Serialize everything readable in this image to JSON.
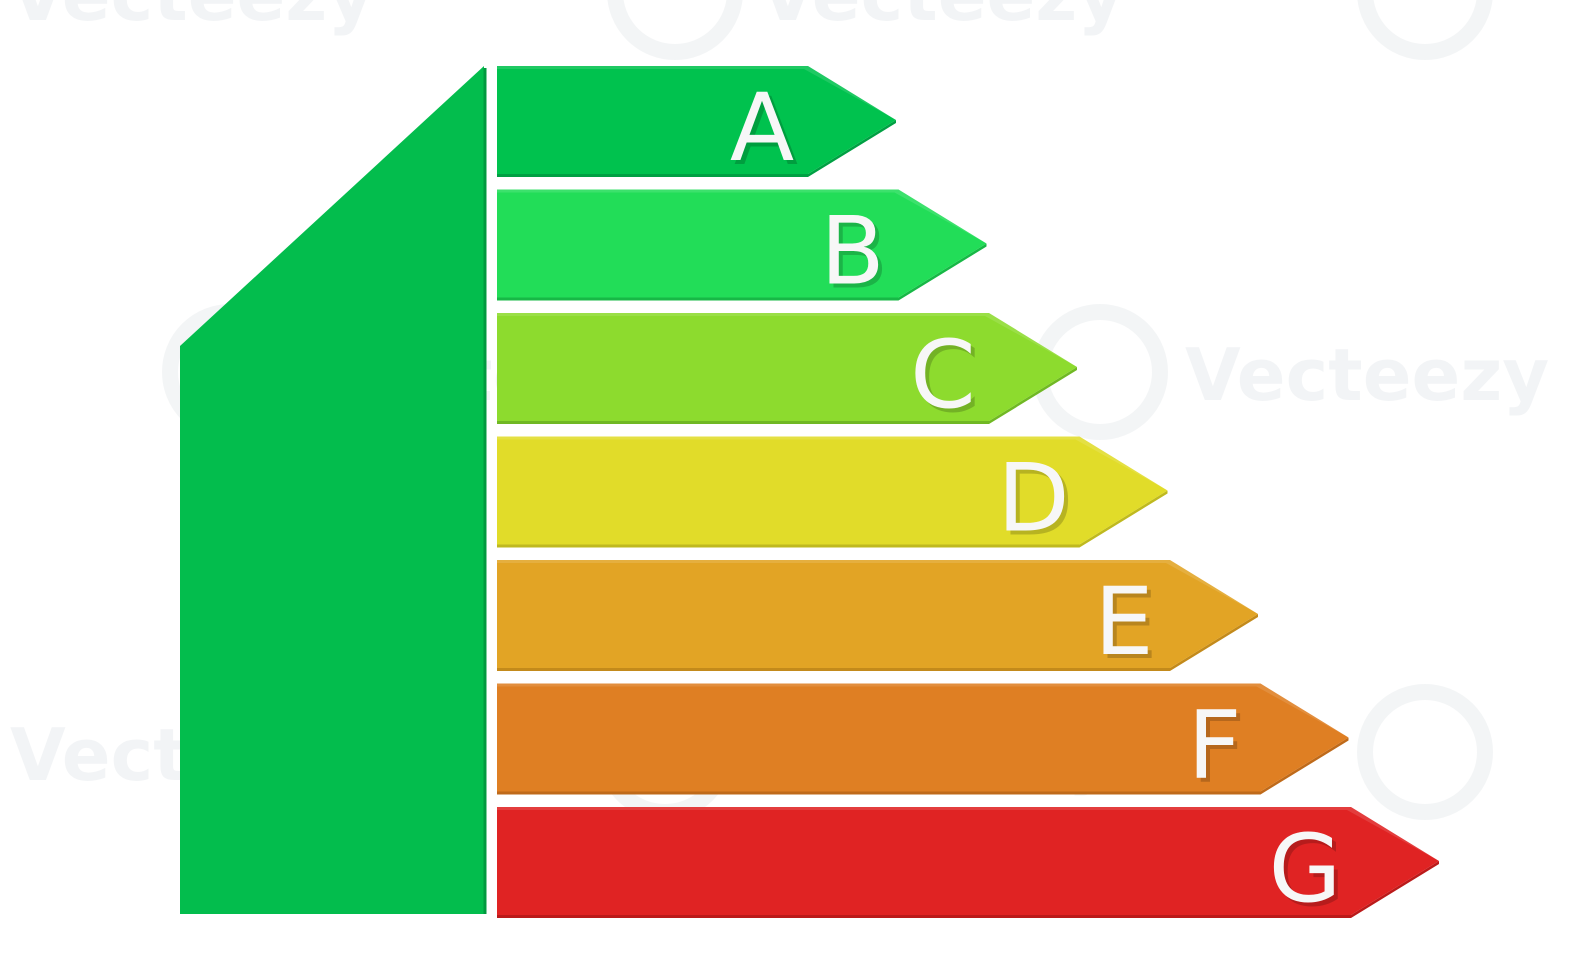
{
  "watermark": {
    "text": "Vecteezy",
    "color": "#e9ecef"
  },
  "house": {
    "color": "#03bd4d"
  },
  "bands": [
    {
      "letter": "A",
      "color": "#00c24e",
      "edge": "#00a043"
    },
    {
      "letter": "B",
      "color": "#22dd58",
      "edge": "#17b846"
    },
    {
      "letter": "C",
      "color": "#8ddb2e",
      "edge": "#70b824"
    },
    {
      "letter": "D",
      "color": "#e1dc29",
      "edge": "#bfb91f"
    },
    {
      "letter": "E",
      "color": "#e2a425",
      "edge": "#c38a1b"
    },
    {
      "letter": "F",
      "color": "#df7f23",
      "edge": "#bf6a1a"
    },
    {
      "letter": "G",
      "color": "#e02323",
      "edge": "#bb1a1a"
    }
  ]
}
